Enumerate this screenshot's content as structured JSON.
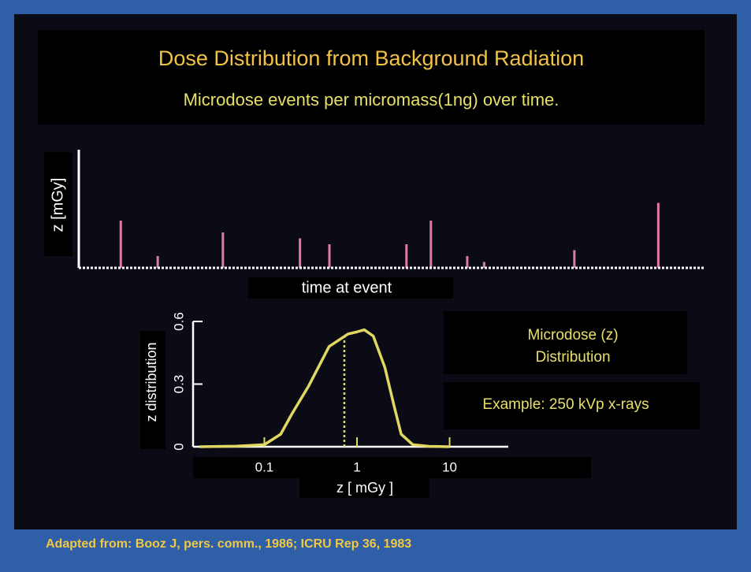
{
  "title": "Dose Distribution from Background Radiation",
  "subtitle": "Microdose events per micromass(1ng) over time.",
  "source": "Adapted from: Booz J, pers. comm., 1986;  ICRU Rep 36, 1983",
  "chart_data": [
    {
      "type": "stem",
      "ylabel": "z [mGy]",
      "xlabel": "time at event",
      "x": [
        0.067,
        0.126,
        0.23,
        0.353,
        0.4,
        0.523,
        0.562,
        0.62,
        0.647,
        0.791,
        0.925
      ],
      "values": [
        0.4,
        0.1,
        0.3,
        0.25,
        0.2,
        0.2,
        0.4,
        0.1,
        0.05,
        0.15,
        0.55
      ],
      "xlim": [
        0,
        1
      ],
      "ylim": [
        0,
        1
      ],
      "color": "#e07aa0"
    },
    {
      "type": "line",
      "xlabel": "z  [ mGy ]",
      "ylabel": "z distribution",
      "xscale": "log",
      "x": [
        0.02,
        0.05,
        0.1,
        0.15,
        0.2,
        0.3,
        0.5,
        0.8,
        1,
        1.2,
        1.5,
        2,
        2.5,
        3,
        4,
        6,
        10
      ],
      "values": [
        0,
        0.003,
        0.01,
        0.06,
        0.16,
        0.29,
        0.48,
        0.54,
        0.55,
        0.56,
        0.53,
        0.38,
        0.2,
        0.06,
        0.01,
        0.002,
        0
      ],
      "xlim": [
        0.017,
        43
      ],
      "ylim": [
        0,
        0.6
      ],
      "xticks": [
        0.1,
        1,
        10
      ],
      "yticks": [
        0,
        0.3,
        0.6
      ],
      "color": "#e0d860",
      "marker_line": {
        "x": 0.73,
        "y": 0.53
      },
      "annotations": [
        "Microdose (z)",
        "Distribution",
        "Example: 250 kVp x-rays"
      ]
    }
  ]
}
